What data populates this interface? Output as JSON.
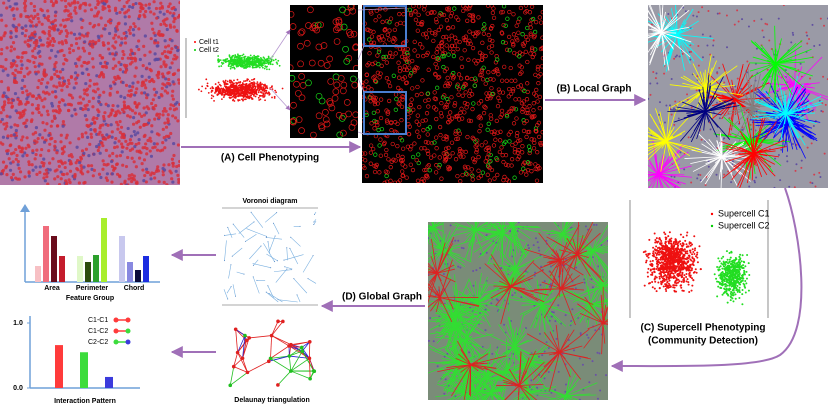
{
  "panels": {
    "a": "(A) Cell Phenotyping",
    "b": "(B) Local Graph",
    "c": [
      "(C) Supercell Phenotyping",
      "(Community Detection)"
    ],
    "d": "(D) Global Graph"
  },
  "cell_legend": [
    "Cell t1",
    "Cell t2"
  ],
  "supercell_legend": [
    "Supercell C1",
    "Supercell C2"
  ],
  "voronoi": {
    "title": "Voronoi diagram"
  },
  "delaunay": {
    "title": "Delaunay triangulation"
  },
  "feature_chart": {
    "categories": [
      "Area",
      "Perimeter",
      "Chord"
    ],
    "xlabel": "Feature Group"
  },
  "interaction_chart": {
    "ylim": [
      0,
      1
    ],
    "yticks": [
      {
        "value": 1,
        "label": "1.0"
      },
      {
        "value": 0,
        "label": "0.0"
      }
    ],
    "legend": [
      "C1-C1",
      "C1-C2",
      "C2-C2"
    ],
    "values": [
      0.66,
      0.55,
      0.17
    ],
    "colors": [
      "#ff3b3b",
      "#3cdc3c",
      "#3b3bdc"
    ],
    "xlabel": "Interaction Pattern"
  }
}
